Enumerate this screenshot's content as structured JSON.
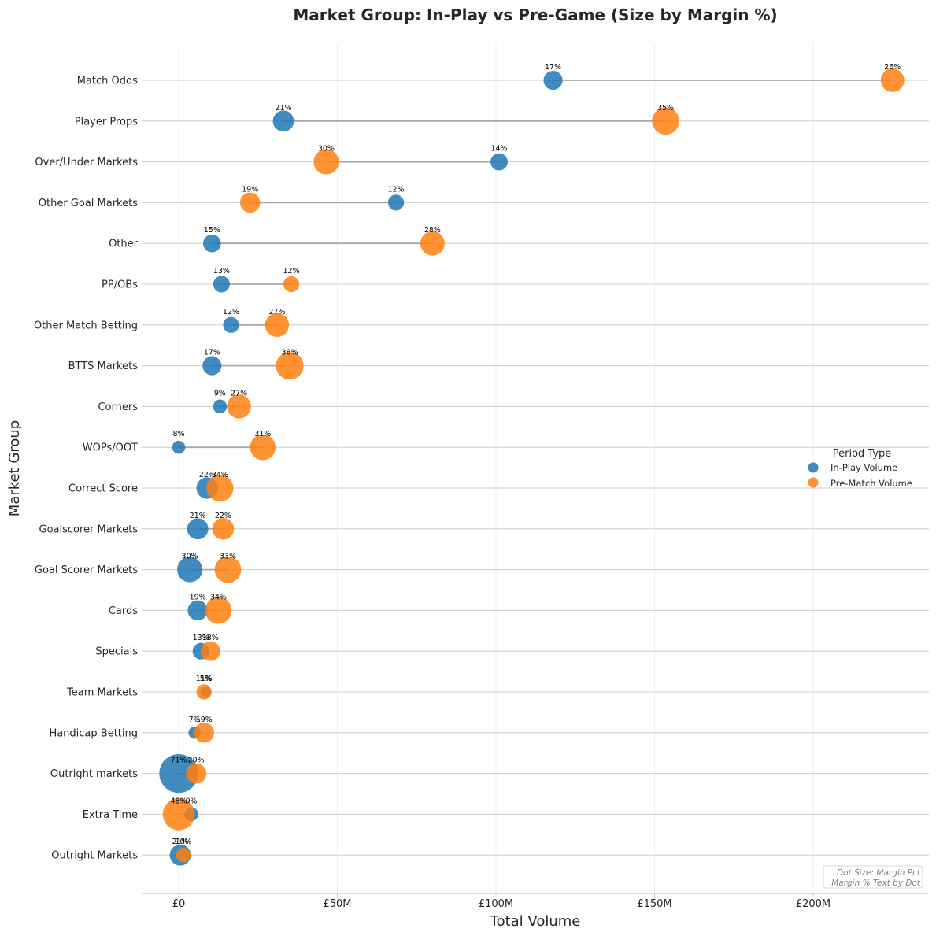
{
  "chart_data": {
    "type": "scatter",
    "subtype": "dumbbell",
    "title": "Market Group: In-Play vs Pre-Game (Size by Margin %)",
    "xlabel": "Total Volume",
    "ylabel": "Market Group",
    "x_ticks": [
      {
        "value": 0,
        "label": "£0"
      },
      {
        "value": 50,
        "label": "£50M"
      },
      {
        "value": 100,
        "label": "£100M"
      },
      {
        "value": 150,
        "label": "£150M"
      },
      {
        "value": 200,
        "label": "£200M"
      }
    ],
    "xlim": [
      -11.5,
      236.5
    ],
    "x_unit": "£M",
    "grid": true,
    "legend": {
      "title": "Period Type",
      "placement": "center-right",
      "entries": [
        {
          "label": "In-Play Volume",
          "color": "#1f77b4"
        },
        {
          "label": "Pre-Match Volume",
          "color": "#ff7f0e"
        }
      ]
    },
    "note": [
      "Dot Size: Margin Pct",
      "Margin % Text by Dot"
    ],
    "colors": {
      "in_play": "#1f77b4",
      "pre_match": "#ff7f0e",
      "connector": "#a9a9a9"
    },
    "categories": [
      "Match Odds",
      "Player Props",
      "Over/Under Markets",
      "Other Goal Markets",
      "Other",
      "PP/OBs",
      "Other Match Betting",
      "BTTS Markets",
      "Corners",
      "WOPs/OOT",
      "Correct Score",
      "Goalscorer Markets",
      "Goal Scorer Markets",
      "Cards",
      "Specials",
      "Team Markets",
      "Handicap Betting",
      "Outright markets",
      "Extra Time",
      "Outright Markets"
    ],
    "series": [
      {
        "name": "In-Play Volume",
        "values": [
          118,
          33,
          101,
          68.5,
          10.5,
          13.5,
          16.5,
          10.5,
          13,
          0,
          9,
          6,
          3.5,
          6,
          7,
          8.5,
          5,
          0,
          4,
          0.5
        ],
        "margin_pct": [
          17,
          21,
          14,
          12,
          15,
          13,
          12,
          17,
          9,
          8,
          22,
          21,
          30,
          19,
          13,
          5,
          7,
          71,
          9,
          21
        ],
        "margin_labels": [
          "17%",
          "21%",
          "14%",
          "12%",
          "15%",
          "13%",
          "12%",
          "17%",
          "9%",
          "8%",
          "22%",
          "21%",
          "30%",
          "19%",
          "13%",
          "5%",
          "7%",
          "71%",
          "9%",
          "21%"
        ]
      },
      {
        "name": "Pre-Match Volume",
        "values": [
          225,
          153.5,
          46.5,
          22.5,
          80,
          35.5,
          31,
          35,
          19,
          26.5,
          13,
          14,
          15.5,
          12.5,
          10,
          8,
          8,
          5.5,
          0,
          1.5
        ],
        "margin_pct": [
          26,
          35,
          30,
          19,
          28,
          12,
          27,
          36,
          27,
          31,
          34,
          22,
          33,
          34,
          18,
          11,
          19,
          20,
          48,
          10
        ],
        "margin_labels": [
          "26%",
          "35%",
          "30%",
          "19%",
          "28%",
          "12%",
          "27%",
          "36%",
          "27%",
          "31%",
          "34%",
          "22%",
          "33%",
          "34%",
          "18%",
          "11%",
          "19%",
          "20%",
          "48%",
          "10%"
        ]
      }
    ]
  }
}
